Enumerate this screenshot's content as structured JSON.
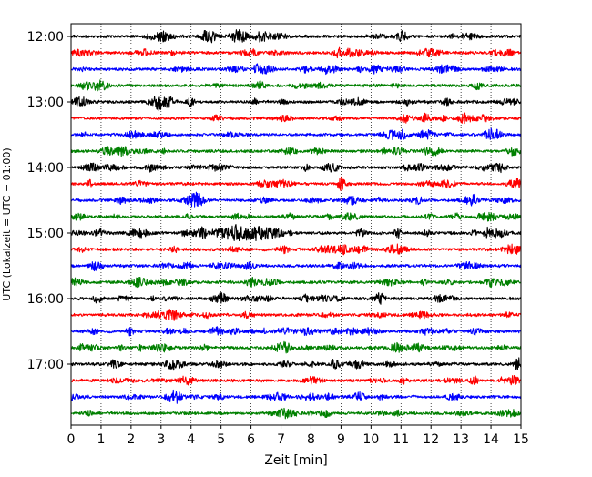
{
  "chart_data": {
    "type": "line",
    "title": "",
    "xlabel": "Zeit  [min]",
    "ylabel": "UTC (Lokalzeit = UTC + 01:00)",
    "xlim": [
      0,
      15
    ],
    "x_ticks": [
      0,
      1,
      2,
      3,
      4,
      5,
      6,
      7,
      8,
      9,
      10,
      11,
      12,
      13,
      14,
      15
    ],
    "x_tick_labels": [
      "0",
      "1",
      "2",
      "3",
      "4",
      "5",
      "6",
      "7",
      "8",
      "9",
      "10",
      "11",
      "12",
      "13",
      "14",
      "15"
    ],
    "y_tick_labels": [
      "12:00",
      "13:00",
      "14:00",
      "15:00",
      "16:00",
      "17:00"
    ],
    "y_tick_trace_index": [
      0,
      4,
      8,
      12,
      16,
      20
    ],
    "vertical_grid": true,
    "grid_style": "dotted",
    "trace_minutes": 15,
    "trace_colors": [
      "#000000",
      "#ff0000",
      "#0000ff",
      "#008000"
    ],
    "traces": [
      {
        "start": "12:00",
        "color": "#000000"
      },
      {
        "start": "12:15",
        "color": "#ff0000"
      },
      {
        "start": "12:30",
        "color": "#0000ff"
      },
      {
        "start": "12:45",
        "color": "#008000"
      },
      {
        "start": "13:00",
        "color": "#000000"
      },
      {
        "start": "13:15",
        "color": "#ff0000"
      },
      {
        "start": "13:30",
        "color": "#0000ff"
      },
      {
        "start": "13:45",
        "color": "#008000"
      },
      {
        "start": "14:00",
        "color": "#000000"
      },
      {
        "start": "14:15",
        "color": "#ff0000"
      },
      {
        "start": "14:30",
        "color": "#0000ff"
      },
      {
        "start": "14:45",
        "color": "#008000"
      },
      {
        "start": "15:00",
        "color": "#000000",
        "event_minutes": [
          4.7,
          7.1
        ]
      },
      {
        "start": "15:15",
        "color": "#ff0000"
      },
      {
        "start": "15:30",
        "color": "#0000ff"
      },
      {
        "start": "15:45",
        "color": "#008000"
      },
      {
        "start": "16:00",
        "color": "#000000"
      },
      {
        "start": "16:15",
        "color": "#ff0000"
      },
      {
        "start": "16:30",
        "color": "#0000ff"
      },
      {
        "start": "16:45",
        "color": "#008000"
      },
      {
        "start": "17:00",
        "color": "#000000"
      },
      {
        "start": "17:15",
        "color": "#ff0000"
      },
      {
        "start": "17:30",
        "color": "#0000ff"
      },
      {
        "start": "17:45",
        "color": "#008000"
      }
    ]
  }
}
